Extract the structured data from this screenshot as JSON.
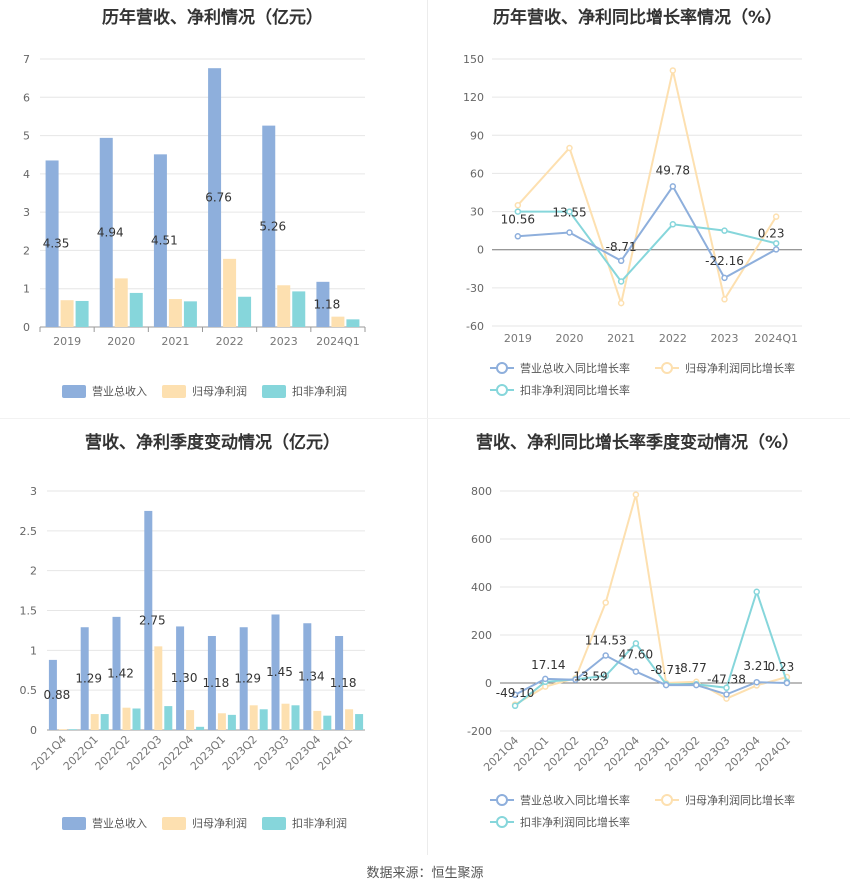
{
  "colors": {
    "revenue": "#8eafdc",
    "net_profit": "#fde0b0",
    "deducted_profit": "#86d6db"
  },
  "source": "数据来源：恒生聚源",
  "chart_data": [
    {
      "id": "annual_amount",
      "type": "bar",
      "title": "历年营收、净利情况（亿元）",
      "categories": [
        "2019",
        "2020",
        "2021",
        "2022",
        "2023",
        "2024Q1"
      ],
      "ylim": [
        0,
        7
      ],
      "yticks": [
        0,
        1,
        2,
        3,
        4,
        5,
        6,
        7
      ],
      "series": [
        {
          "name": "营业总收入",
          "values": [
            4.35,
            4.94,
            4.51,
            6.76,
            5.26,
            1.18
          ]
        },
        {
          "name": "归母净利润",
          "values": [
            0.7,
            1.27,
            0.73,
            1.78,
            1.09,
            0.27
          ]
        },
        {
          "name": "扣非净利润",
          "values": [
            0.68,
            0.89,
            0.67,
            0.79,
            0.93,
            0.2
          ]
        }
      ],
      "data_labels": [
        "4.35",
        "4.94",
        "4.51",
        "6.76",
        "5.26",
        "1.18"
      ],
      "legend": "bottom"
    },
    {
      "id": "annual_growth",
      "type": "line",
      "title": "历年营收、净利同比增长率情况（%）",
      "categories": [
        "2019",
        "2020",
        "2021",
        "2022",
        "2023",
        "2024Q1"
      ],
      "ylim": [
        -60,
        150
      ],
      "yticks": [
        -60,
        -30,
        0,
        30,
        60,
        90,
        120,
        150
      ],
      "series": [
        {
          "name": "营业总收入同比增长率",
          "values": [
            10.56,
            13.55,
            -8.71,
            49.78,
            -22.16,
            0.23
          ]
        },
        {
          "name": "归母净利润同比增长率",
          "values": [
            35,
            80,
            -42,
            141,
            -39,
            26
          ]
        },
        {
          "name": "扣非净利润同比增长率",
          "values": [
            30,
            30,
            -25,
            20,
            15,
            5
          ]
        }
      ],
      "data_labels": [
        "10.56",
        "13.55",
        "-8.71",
        "49.78",
        "-22.16",
        "0.23"
      ],
      "legend": "bottom"
    },
    {
      "id": "quarterly_amount",
      "type": "bar",
      "title": "营收、净利季度变动情况（亿元）",
      "categories": [
        "2021Q4",
        "2022Q1",
        "2022Q2",
        "2022Q3",
        "2022Q4",
        "2023Q1",
        "2023Q2",
        "2023Q3",
        "2023Q4",
        "2024Q1"
      ],
      "ylim": [
        0,
        3
      ],
      "yticks": [
        0,
        0.5,
        1,
        1.5,
        2,
        2.5,
        3
      ],
      "series": [
        {
          "name": "营业总收入",
          "values": [
            0.88,
            1.29,
            1.42,
            2.75,
            1.3,
            1.18,
            1.29,
            1.45,
            1.34,
            1.18
          ]
        },
        {
          "name": "归母净利润",
          "values": [
            0.01,
            0.2,
            0.28,
            1.05,
            0.25,
            0.21,
            0.31,
            0.33,
            0.24,
            0.26
          ]
        },
        {
          "name": "扣非净利润",
          "values": [
            0.01,
            0.2,
            0.27,
            0.3,
            0.04,
            0.19,
            0.26,
            0.31,
            0.18,
            0.2
          ]
        }
      ],
      "data_labels": [
        "0.88",
        "1.29",
        "1.42",
        "2.75",
        "1.30",
        "1.18",
        "1.29",
        "1.45",
        "1.34",
        "1.18"
      ],
      "legend": "bottom"
    },
    {
      "id": "quarterly_growth",
      "type": "line",
      "title": "营收、净利同比增长率季度变动情况（%）",
      "categories": [
        "2021Q4",
        "2022Q1",
        "2022Q2",
        "2022Q3",
        "2022Q4",
        "2023Q1",
        "2023Q2",
        "2023Q3",
        "2023Q4",
        "2024Q1"
      ],
      "ylim": [
        -200,
        800
      ],
      "yticks": [
        -200,
        0,
        200,
        400,
        600,
        800
      ],
      "series": [
        {
          "name": "营业总收入同比增长率",
          "values": [
            -49.1,
            17.14,
            13.59,
            114.53,
            47.6,
            -8.71,
            -8.77,
            -47.38,
            3.21,
            0.23
          ]
        },
        {
          "name": "归母净利润同比增长率",
          "values": [
            -90,
            -15,
            20,
            335,
            785,
            0,
            5,
            -65,
            -10,
            25
          ]
        },
        {
          "name": "扣非净利润同比增长率",
          "values": [
            -95,
            5,
            15,
            30,
            165,
            -5,
            -5,
            -20,
            380,
            5
          ]
        }
      ],
      "data_labels": [
        "-49.10",
        "17.14",
        "13.59",
        "114.53",
        "47.60",
        "-8.71",
        "-8.77",
        "-47.38",
        "3.21",
        "0.23"
      ],
      "legend": "bottom"
    }
  ]
}
